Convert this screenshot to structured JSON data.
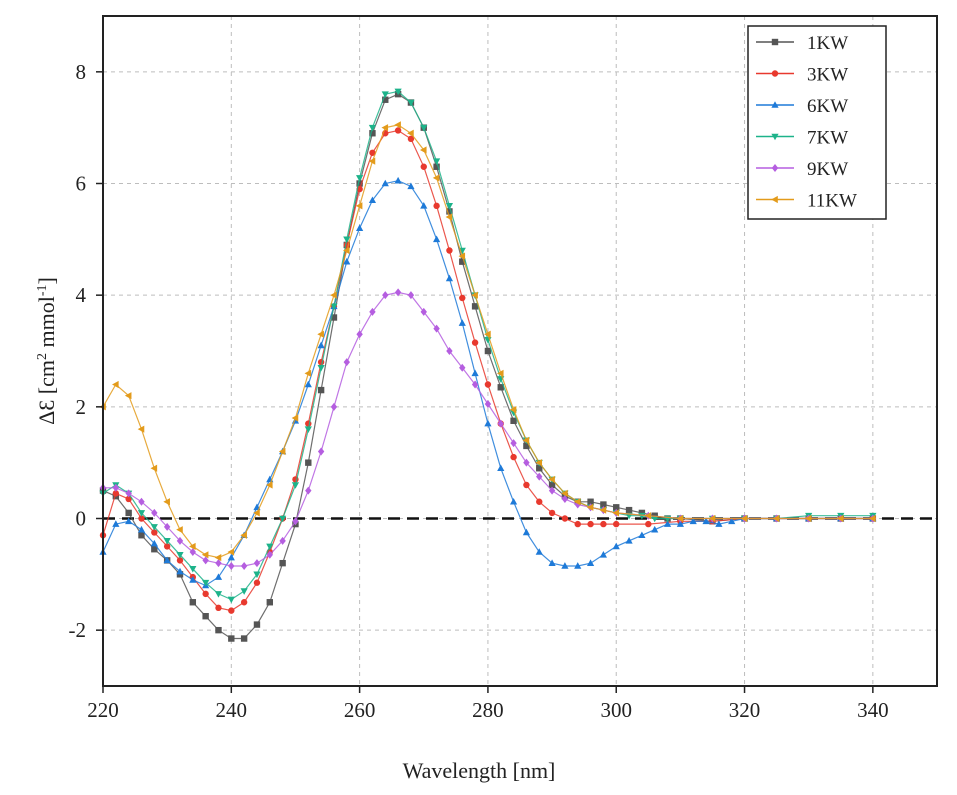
{
  "chart_data": {
    "type": "line",
    "title": "",
    "xlabel": "Wavelength [nm]",
    "ylabel_main": "ΔƐ [cm",
    "ylabel_sup1": "2",
    "ylabel_mid": " mmol",
    "ylabel_sup2": "-1",
    "ylabel_end": "]",
    "xlim": [
      220,
      350
    ],
    "ylim": [
      -3,
      9
    ],
    "xticks": [
      220,
      240,
      260,
      280,
      300,
      320,
      340
    ],
    "yticks": [
      -2,
      0,
      2,
      4,
      6,
      8
    ],
    "grid": true,
    "legend_position": "top-right",
    "baseline": 0,
    "series": [
      {
        "name": "1KW",
        "color": "#555555",
        "marker": "square",
        "x": [
          220,
          222,
          224,
          226,
          228,
          230,
          232,
          234,
          236,
          238,
          240,
          242,
          244,
          246,
          248,
          250,
          252,
          254,
          256,
          258,
          260,
          262,
          264,
          266,
          268,
          270,
          272,
          274,
          276,
          278,
          280,
          282,
          284,
          286,
          288,
          290,
          292,
          294,
          296,
          298,
          300,
          302,
          304,
          306,
          308,
          310,
          315,
          320,
          325,
          330,
          335,
          340
        ],
        "y": [
          0.5,
          0.4,
          0.1,
          -0.3,
          -0.55,
          -0.75,
          -1.0,
          -1.5,
          -1.75,
          -2.0,
          -2.15,
          -2.15,
          -1.9,
          -1.5,
          -0.8,
          -0.1,
          1.0,
          2.3,
          3.6,
          4.9,
          6.0,
          6.9,
          7.5,
          7.6,
          7.45,
          7.0,
          6.3,
          5.5,
          4.6,
          3.8,
          3.0,
          2.35,
          1.75,
          1.3,
          0.9,
          0.6,
          0.4,
          0.3,
          0.3,
          0.25,
          0.2,
          0.15,
          0.1,
          0.05,
          0.0,
          0.0,
          -0.05,
          0.0,
          0.0,
          0.0,
          0.0,
          0.0
        ]
      },
      {
        "name": "3KW",
        "color": "#e8392e",
        "marker": "circle",
        "x": [
          220,
          222,
          224,
          226,
          228,
          230,
          232,
          234,
          236,
          238,
          240,
          242,
          244,
          246,
          248,
          250,
          252,
          254,
          256,
          258,
          260,
          262,
          264,
          266,
          268,
          270,
          272,
          274,
          276,
          278,
          280,
          282,
          284,
          286,
          288,
          290,
          292,
          294,
          296,
          298,
          300,
          305,
          310,
          315,
          320,
          325,
          330,
          335,
          340
        ],
        "y": [
          -0.3,
          0.45,
          0.35,
          0.0,
          -0.25,
          -0.5,
          -0.75,
          -1.05,
          -1.35,
          -1.6,
          -1.65,
          -1.5,
          -1.15,
          -0.6,
          0.0,
          0.7,
          1.7,
          2.8,
          3.8,
          4.9,
          5.9,
          6.55,
          6.9,
          6.95,
          6.8,
          6.3,
          5.6,
          4.8,
          3.95,
          3.15,
          2.4,
          1.7,
          1.1,
          0.6,
          0.3,
          0.1,
          0.0,
          -0.1,
          -0.1,
          -0.1,
          -0.1,
          -0.1,
          -0.05,
          -0.05,
          0.0,
          0.0,
          0.0,
          0.0,
          0.0
        ]
      },
      {
        "name": "6KW",
        "color": "#1e7ad8",
        "marker": "triangle-up",
        "x": [
          220,
          222,
          224,
          226,
          228,
          230,
          232,
          234,
          236,
          238,
          240,
          242,
          244,
          246,
          248,
          250,
          252,
          254,
          256,
          258,
          260,
          262,
          264,
          266,
          268,
          270,
          272,
          274,
          276,
          278,
          280,
          282,
          284,
          286,
          288,
          290,
          292,
          294,
          296,
          298,
          300,
          302,
          304,
          306,
          308,
          310,
          312,
          314,
          316,
          318,
          320,
          325,
          330,
          335,
          340
        ],
        "y": [
          -0.6,
          -0.1,
          -0.05,
          -0.2,
          -0.45,
          -0.75,
          -0.95,
          -1.1,
          -1.2,
          -1.05,
          -0.7,
          -0.3,
          0.2,
          0.7,
          1.2,
          1.75,
          2.4,
          3.1,
          3.8,
          4.6,
          5.2,
          5.7,
          6.0,
          6.05,
          5.95,
          5.6,
          5.0,
          4.3,
          3.5,
          2.6,
          1.7,
          0.9,
          0.3,
          -0.25,
          -0.6,
          -0.8,
          -0.85,
          -0.85,
          -0.8,
          -0.65,
          -0.5,
          -0.4,
          -0.3,
          -0.2,
          -0.1,
          -0.1,
          -0.05,
          -0.05,
          -0.1,
          -0.05,
          0.0,
          0.0,
          0.0,
          0.0,
          0.0
        ]
      },
      {
        "name": "7KW",
        "color": "#1db38a",
        "marker": "triangle-down",
        "x": [
          220,
          222,
          224,
          226,
          228,
          230,
          232,
          234,
          236,
          238,
          240,
          242,
          244,
          246,
          248,
          250,
          252,
          254,
          256,
          258,
          260,
          262,
          264,
          266,
          268,
          270,
          272,
          274,
          276,
          278,
          280,
          282,
          284,
          286,
          288,
          290,
          292,
          294,
          296,
          298,
          300,
          302,
          304,
          306,
          308,
          310,
          315,
          320,
          325,
          330,
          335,
          340
        ],
        "y": [
          0.45,
          0.6,
          0.45,
          0.1,
          -0.15,
          -0.4,
          -0.65,
          -0.9,
          -1.15,
          -1.35,
          -1.45,
          -1.3,
          -1.0,
          -0.5,
          0.0,
          0.6,
          1.6,
          2.7,
          3.8,
          5.0,
          6.1,
          7.0,
          7.6,
          7.65,
          7.45,
          7.0,
          6.4,
          5.6,
          4.8,
          4.0,
          3.2,
          2.5,
          1.9,
          1.4,
          1.0,
          0.7,
          0.45,
          0.3,
          0.2,
          0.15,
          0.1,
          0.05,
          0.05,
          0.0,
          0.0,
          0.0,
          0.0,
          0.0,
          0.0,
          0.05,
          0.05,
          0.05
        ]
      },
      {
        "name": "9KW",
        "color": "#b55ee0",
        "marker": "diamond",
        "x": [
          220,
          222,
          224,
          226,
          228,
          230,
          232,
          234,
          236,
          238,
          240,
          242,
          244,
          246,
          248,
          250,
          252,
          254,
          256,
          258,
          260,
          262,
          264,
          266,
          268,
          270,
          272,
          274,
          276,
          278,
          280,
          282,
          284,
          286,
          288,
          290,
          292,
          294,
          296,
          298,
          300,
          305,
          310,
          315,
          320,
          325,
          330,
          335,
          340
        ],
        "y": [
          0.55,
          0.55,
          0.45,
          0.3,
          0.1,
          -0.15,
          -0.4,
          -0.6,
          -0.75,
          -0.8,
          -0.85,
          -0.85,
          -0.8,
          -0.65,
          -0.4,
          -0.05,
          0.5,
          1.2,
          2.0,
          2.8,
          3.3,
          3.7,
          4.0,
          4.05,
          4.0,
          3.7,
          3.4,
          3.0,
          2.7,
          2.4,
          2.05,
          1.7,
          1.35,
          1.0,
          0.75,
          0.5,
          0.35,
          0.25,
          0.2,
          0.15,
          0.1,
          0.05,
          0.0,
          0.0,
          0.0,
          0.0,
          0.0,
          0.0,
          0.0
        ]
      },
      {
        "name": "11KW",
        "color": "#e39b1b",
        "marker": "triangle-left",
        "x": [
          220,
          222,
          224,
          226,
          228,
          230,
          232,
          234,
          236,
          238,
          240,
          242,
          244,
          246,
          248,
          250,
          252,
          254,
          256,
          258,
          260,
          262,
          264,
          266,
          268,
          270,
          272,
          274,
          276,
          278,
          280,
          282,
          284,
          286,
          288,
          290,
          292,
          294,
          296,
          298,
          300,
          305,
          310,
          315,
          320,
          325,
          330,
          335,
          340
        ],
        "y": [
          2.0,
          2.4,
          2.2,
          1.6,
          0.9,
          0.3,
          -0.2,
          -0.5,
          -0.65,
          -0.7,
          -0.6,
          -0.3,
          0.1,
          0.6,
          1.2,
          1.8,
          2.6,
          3.3,
          4.0,
          4.8,
          5.6,
          6.4,
          7.0,
          7.05,
          6.9,
          6.6,
          6.1,
          5.4,
          4.7,
          4.0,
          3.3,
          2.6,
          1.95,
          1.4,
          1.0,
          0.7,
          0.45,
          0.3,
          0.2,
          0.15,
          0.1,
          0.05,
          0.0,
          0.0,
          0.0,
          0.0,
          0.0,
          0.0,
          0.0
        ]
      }
    ]
  }
}
